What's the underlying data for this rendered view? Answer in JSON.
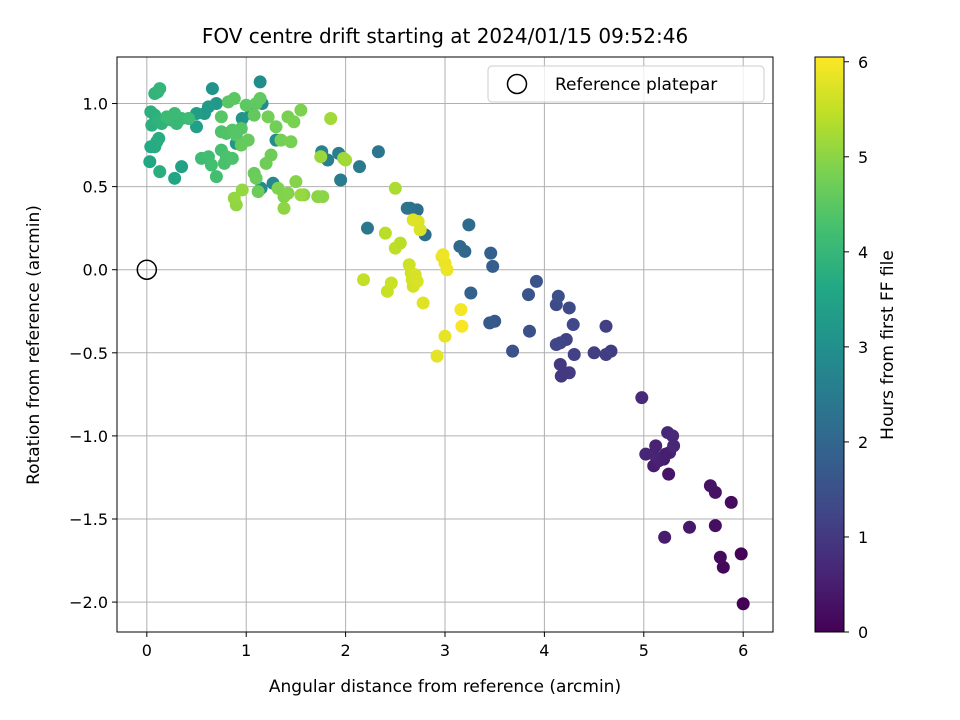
{
  "chart_data": {
    "type": "scatter",
    "title": "FOV centre drift starting at 2024/01/15 09:52:46",
    "xlabel": "Angular distance from reference (arcmin)",
    "ylabel": "Rotation from reference (arcmin)",
    "xlim": [
      -0.3,
      6.3
    ],
    "ylim": [
      -2.18,
      1.28
    ],
    "xticks": [
      0,
      1,
      2,
      3,
      4,
      5,
      6
    ],
    "xtick_labels": [
      "0",
      "1",
      "2",
      "3",
      "4",
      "5",
      "6"
    ],
    "yticks": [
      -2.0,
      -1.5,
      -1.0,
      -0.5,
      0.0,
      0.5,
      1.0
    ],
    "ytick_labels": [
      "−2.0",
      "−1.5",
      "−1.0",
      "−0.5",
      "0.0",
      "0.5",
      "1.0"
    ],
    "grid": true,
    "legend": {
      "position": "top-right",
      "entries": [
        "Reference platepar"
      ]
    },
    "reference_point": {
      "x": 0.0,
      "y": 0.0,
      "label": "Reference platepar"
    },
    "colorbar": {
      "label": "Hours from first FF file",
      "min": 0,
      "max": 6.05,
      "ticks": [
        0,
        1,
        2,
        3,
        4,
        5,
        6
      ],
      "tick_labels": [
        "0",
        "1",
        "2",
        "3",
        "4",
        "5",
        "6"
      ],
      "colormap": "viridis"
    },
    "points": [
      {
        "x": 6.0,
        "y": -2.01,
        "t": 0.02
      },
      {
        "x": 5.98,
        "y": -1.71,
        "t": 0.05
      },
      {
        "x": 5.8,
        "y": -1.79,
        "t": 0.1
      },
      {
        "x": 5.77,
        "y": -1.73,
        "t": 0.15
      },
      {
        "x": 5.72,
        "y": -1.54,
        "t": 0.22
      },
      {
        "x": 5.88,
        "y": -1.4,
        "t": 0.18
      },
      {
        "x": 5.72,
        "y": -1.34,
        "t": 0.28
      },
      {
        "x": 5.67,
        "y": -1.3,
        "t": 0.3
      },
      {
        "x": 5.46,
        "y": -1.55,
        "t": 0.4
      },
      {
        "x": 5.21,
        "y": -1.61,
        "t": 0.45
      },
      {
        "x": 5.25,
        "y": -1.23,
        "t": 0.35
      },
      {
        "x": 5.2,
        "y": -1.14,
        "t": 0.5
      },
      {
        "x": 5.1,
        "y": -1.18,
        "t": 0.48
      },
      {
        "x": 5.15,
        "y": -1.15,
        "t": 0.55
      },
      {
        "x": 5.26,
        "y": -1.1,
        "t": 0.6
      },
      {
        "x": 5.22,
        "y": -1.11,
        "t": 0.52
      },
      {
        "x": 5.1,
        "y": -1.11,
        "t": 0.62
      },
      {
        "x": 5.02,
        "y": -1.11,
        "t": 0.65
      },
      {
        "x": 5.12,
        "y": -1.06,
        "t": 0.58
      },
      {
        "x": 5.3,
        "y": -1.06,
        "t": 0.68
      },
      {
        "x": 5.24,
        "y": -0.98,
        "t": 0.66
      },
      {
        "x": 5.29,
        "y": -1.0,
        "t": 0.7
      },
      {
        "x": 4.98,
        "y": -0.77,
        "t": 0.72
      },
      {
        "x": 4.67,
        "y": -0.49,
        "t": 1.05
      },
      {
        "x": 4.62,
        "y": -0.51,
        "t": 1.1
      },
      {
        "x": 4.62,
        "y": -0.34,
        "t": 1.12
      },
      {
        "x": 4.5,
        "y": -0.5,
        "t": 1.08
      },
      {
        "x": 4.3,
        "y": -0.51,
        "t": 1.15
      },
      {
        "x": 4.25,
        "y": -0.62,
        "t": 1.02
      },
      {
        "x": 4.17,
        "y": -0.64,
        "t": 0.98
      },
      {
        "x": 4.16,
        "y": -0.57,
        "t": 1.0
      },
      {
        "x": 4.22,
        "y": -0.42,
        "t": 1.2
      },
      {
        "x": 4.16,
        "y": -0.44,
        "t": 1.22
      },
      {
        "x": 4.12,
        "y": -0.45,
        "t": 1.25
      },
      {
        "x": 4.29,
        "y": -0.33,
        "t": 1.3
      },
      {
        "x": 4.25,
        "y": -0.23,
        "t": 1.35
      },
      {
        "x": 4.12,
        "y": -0.21,
        "t": 1.4
      },
      {
        "x": 4.14,
        "y": -0.16,
        "t": 1.45
      },
      {
        "x": 3.92,
        "y": -0.07,
        "t": 1.55
      },
      {
        "x": 3.84,
        "y": -0.15,
        "t": 1.6
      },
      {
        "x": 3.85,
        "y": -0.37,
        "t": 1.5
      },
      {
        "x": 3.68,
        "y": -0.49,
        "t": 1.52
      },
      {
        "x": 3.5,
        "y": -0.31,
        "t": 1.65
      },
      {
        "x": 3.45,
        "y": -0.32,
        "t": 1.7
      },
      {
        "x": 3.48,
        "y": 0.02,
        "t": 1.8
      },
      {
        "x": 3.46,
        "y": 0.1,
        "t": 1.85
      },
      {
        "x": 3.26,
        "y": -0.14,
        "t": 1.9
      },
      {
        "x": 3.2,
        "y": 0.11,
        "t": 2.0
      },
      {
        "x": 3.15,
        "y": 0.14,
        "t": 2.05
      },
      {
        "x": 3.24,
        "y": 0.27,
        "t": 2.1
      },
      {
        "x": 2.8,
        "y": 0.21,
        "t": 2.15
      },
      {
        "x": 2.72,
        "y": 0.36,
        "t": 2.2
      },
      {
        "x": 2.65,
        "y": 0.37,
        "t": 2.25
      },
      {
        "x": 2.62,
        "y": 0.37,
        "t": 2.3
      },
      {
        "x": 2.33,
        "y": 0.71,
        "t": 2.35
      },
      {
        "x": 2.14,
        "y": 0.62,
        "t": 2.45
      },
      {
        "x": 2.22,
        "y": 0.25,
        "t": 2.4
      },
      {
        "x": 1.95,
        "y": 0.54,
        "t": 2.5
      },
      {
        "x": 1.93,
        "y": 0.7,
        "t": 2.55
      },
      {
        "x": 1.82,
        "y": 0.66,
        "t": 2.6
      },
      {
        "x": 1.76,
        "y": 0.71,
        "t": 2.65
      },
      {
        "x": 1.27,
        "y": 0.52,
        "t": 2.8
      },
      {
        "x": 1.15,
        "y": 0.49,
        "t": 2.85
      },
      {
        "x": 1.3,
        "y": 0.78,
        "t": 2.9
      },
      {
        "x": 1.14,
        "y": 1.13,
        "t": 2.95
      },
      {
        "x": 1.16,
        "y": 1.0,
        "t": 3.0
      },
      {
        "x": 1.05,
        "y": 0.94,
        "t": 3.05
      },
      {
        "x": 0.96,
        "y": 0.91,
        "t": 3.1
      },
      {
        "x": 0.9,
        "y": 0.76,
        "t": 3.15
      },
      {
        "x": 0.66,
        "y": 1.09,
        "t": 3.05
      },
      {
        "x": 0.7,
        "y": 1.0,
        "t": 3.2
      },
      {
        "x": 0.62,
        "y": 0.98,
        "t": 3.25
      },
      {
        "x": 0.58,
        "y": 0.94,
        "t": 3.3
      },
      {
        "x": 0.5,
        "y": 0.94,
        "t": 3.35
      },
      {
        "x": 0.5,
        "y": 0.86,
        "t": 3.4
      },
      {
        "x": 0.35,
        "y": 0.62,
        "t": 3.45
      },
      {
        "x": 0.28,
        "y": 0.55,
        "t": 3.55
      },
      {
        "x": 0.03,
        "y": 0.65,
        "t": 3.6
      },
      {
        "x": 0.04,
        "y": 0.74,
        "t": 3.65
      },
      {
        "x": 0.08,
        "y": 0.74,
        "t": 3.7
      },
      {
        "x": 0.1,
        "y": 0.77,
        "t": 3.72
      },
      {
        "x": 0.12,
        "y": 0.79,
        "t": 3.75
      },
      {
        "x": 0.13,
        "y": 0.59,
        "t": 3.78
      },
      {
        "x": 0.05,
        "y": 0.87,
        "t": 3.8
      },
      {
        "x": 0.04,
        "y": 0.95,
        "t": 3.82
      },
      {
        "x": 0.08,
        "y": 0.93,
        "t": 3.85
      },
      {
        "x": 0.12,
        "y": 0.9,
        "t": 3.88
      },
      {
        "x": 0.15,
        "y": 0.88,
        "t": 3.9
      },
      {
        "x": 0.08,
        "y": 1.06,
        "t": 3.92
      },
      {
        "x": 0.11,
        "y": 1.07,
        "t": 3.95
      },
      {
        "x": 0.13,
        "y": 1.09,
        "t": 3.97
      },
      {
        "x": 0.25,
        "y": 0.9,
        "t": 4.0
      },
      {
        "x": 0.3,
        "y": 0.88,
        "t": 4.02
      },
      {
        "x": 0.35,
        "y": 0.91,
        "t": 4.05
      },
      {
        "x": 0.28,
        "y": 0.94,
        "t": 4.07
      },
      {
        "x": 0.2,
        "y": 0.92,
        "t": 4.1
      },
      {
        "x": 0.42,
        "y": 0.91,
        "t": 4.12
      },
      {
        "x": 0.55,
        "y": 0.67,
        "t": 4.15
      },
      {
        "x": 0.62,
        "y": 0.68,
        "t": 4.18
      },
      {
        "x": 0.65,
        "y": 0.63,
        "t": 4.2
      },
      {
        "x": 0.7,
        "y": 0.56,
        "t": 4.22
      },
      {
        "x": 0.75,
        "y": 0.72,
        "t": 4.25
      },
      {
        "x": 0.78,
        "y": 0.64,
        "t": 4.28
      },
      {
        "x": 0.8,
        "y": 0.68,
        "t": 4.3
      },
      {
        "x": 0.86,
        "y": 0.67,
        "t": 4.32
      },
      {
        "x": 0.75,
        "y": 0.83,
        "t": 4.35
      },
      {
        "x": 0.8,
        "y": 0.82,
        "t": 4.37
      },
      {
        "x": 0.86,
        "y": 0.84,
        "t": 4.4
      },
      {
        "x": 0.9,
        "y": 0.81,
        "t": 4.42
      },
      {
        "x": 0.95,
        "y": 0.85,
        "t": 4.44
      },
      {
        "x": 0.75,
        "y": 0.92,
        "t": 4.46
      },
      {
        "x": 0.82,
        "y": 1.01,
        "t": 4.48
      },
      {
        "x": 0.88,
        "y": 1.03,
        "t": 4.5
      },
      {
        "x": 1.0,
        "y": 0.99,
        "t": 4.52
      },
      {
        "x": 1.1,
        "y": 1.0,
        "t": 4.54
      },
      {
        "x": 1.14,
        "y": 1.03,
        "t": 4.56
      },
      {
        "x": 1.08,
        "y": 0.93,
        "t": 4.58
      },
      {
        "x": 0.95,
        "y": 0.75,
        "t": 4.6
      },
      {
        "x": 1.02,
        "y": 0.78,
        "t": 4.62
      },
      {
        "x": 1.08,
        "y": 0.58,
        "t": 4.64
      },
      {
        "x": 1.1,
        "y": 0.55,
        "t": 4.66
      },
      {
        "x": 1.12,
        "y": 0.47,
        "t": 4.68
      },
      {
        "x": 1.2,
        "y": 0.64,
        "t": 4.7
      },
      {
        "x": 1.25,
        "y": 0.69,
        "t": 4.72
      },
      {
        "x": 1.3,
        "y": 0.86,
        "t": 4.74
      },
      {
        "x": 1.22,
        "y": 0.92,
        "t": 4.76
      },
      {
        "x": 1.35,
        "y": 0.78,
        "t": 4.78
      },
      {
        "x": 1.45,
        "y": 0.77,
        "t": 4.8
      },
      {
        "x": 1.42,
        "y": 0.92,
        "t": 4.82
      },
      {
        "x": 1.48,
        "y": 0.89,
        "t": 4.84
      },
      {
        "x": 1.55,
        "y": 0.96,
        "t": 4.86
      },
      {
        "x": 1.32,
        "y": 0.49,
        "t": 4.88
      },
      {
        "x": 1.38,
        "y": 0.44,
        "t": 4.9
      },
      {
        "x": 1.42,
        "y": 0.46,
        "t": 4.92
      },
      {
        "x": 1.5,
        "y": 0.53,
        "t": 4.94
      },
      {
        "x": 1.58,
        "y": 0.45,
        "t": 4.96
      },
      {
        "x": 1.72,
        "y": 0.44,
        "t": 4.98
      },
      {
        "x": 1.77,
        "y": 0.44,
        "t": 5.0
      },
      {
        "x": 1.38,
        "y": 0.37,
        "t": 5.02
      },
      {
        "x": 0.9,
        "y": 0.39,
        "t": 5.04
      },
      {
        "x": 0.88,
        "y": 0.43,
        "t": 5.06
      },
      {
        "x": 0.96,
        "y": 0.48,
        "t": 5.08
      },
      {
        "x": 1.55,
        "y": 0.45,
        "t": 5.1
      },
      {
        "x": 1.75,
        "y": 0.68,
        "t": 5.12
      },
      {
        "x": 1.98,
        "y": 0.67,
        "t": 5.14
      },
      {
        "x": 1.85,
        "y": 0.91,
        "t": 5.18
      },
      {
        "x": 2.0,
        "y": 0.66,
        "t": 5.2
      },
      {
        "x": 2.5,
        "y": 0.49,
        "t": 5.3
      },
      {
        "x": 2.4,
        "y": 0.22,
        "t": 5.4
      },
      {
        "x": 2.5,
        "y": 0.13,
        "t": 5.45
      },
      {
        "x": 2.55,
        "y": 0.16,
        "t": 5.42
      },
      {
        "x": 2.18,
        "y": -0.06,
        "t": 5.5
      },
      {
        "x": 2.42,
        "y": -0.13,
        "t": 5.55
      },
      {
        "x": 2.46,
        "y": -0.08,
        "t": 5.58
      },
      {
        "x": 2.64,
        "y": 0.03,
        "t": 5.6
      },
      {
        "x": 2.66,
        "y": -0.02,
        "t": 5.62
      },
      {
        "x": 2.67,
        "y": -0.06,
        "t": 5.64
      },
      {
        "x": 2.68,
        "y": -0.1,
        "t": 5.66
      },
      {
        "x": 2.7,
        "y": -0.03,
        "t": 5.68
      },
      {
        "x": 2.72,
        "y": -0.07,
        "t": 5.7
      },
      {
        "x": 2.75,
        "y": 0.24,
        "t": 5.72
      },
      {
        "x": 2.73,
        "y": 0.29,
        "t": 5.74
      },
      {
        "x": 2.68,
        "y": 0.3,
        "t": 5.76
      },
      {
        "x": 2.78,
        "y": -0.2,
        "t": 5.78
      },
      {
        "x": 2.92,
        "y": -0.52,
        "t": 5.8
      },
      {
        "x": 3.0,
        "y": -0.4,
        "t": 5.82
      },
      {
        "x": 2.97,
        "y": 0.08,
        "t": 5.84
      },
      {
        "x": 3.0,
        "y": 0.04,
        "t": 5.86
      },
      {
        "x": 3.02,
        "y": 0.0,
        "t": 5.88
      },
      {
        "x": 2.98,
        "y": 0.09,
        "t": 5.9
      },
      {
        "x": 3.16,
        "y": -0.24,
        "t": 5.95
      },
      {
        "x": 3.17,
        "y": -0.34,
        "t": 6.0
      }
    ]
  }
}
